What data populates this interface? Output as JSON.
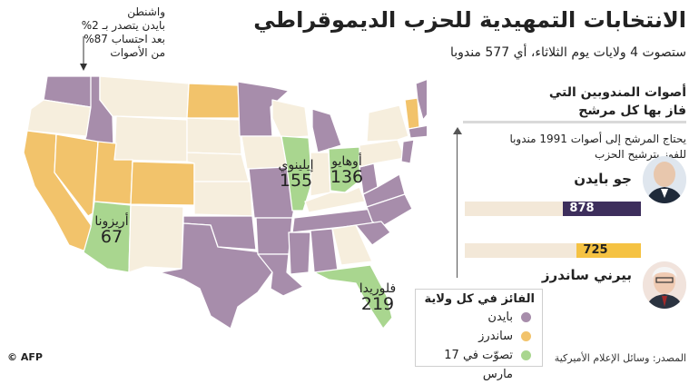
{
  "header": {
    "title": "الانتخابات التمهيدية للحزب الديموقراطي",
    "subtitle": "ستصوت 4 ولايات يوم الثلاثاء، أي 577 مندوبا"
  },
  "panel": {
    "heading_line1": "أصوات المندوبين التي",
    "heading_line2": "فاز بها كل مرشح",
    "threshold_line1": "يحتاج المرشح إلى أصوات 1991 مندوبا",
    "threshold_line2": "للفوز بترشيح الحزب",
    "threshold_value": 1991,
    "bar_max": 1991,
    "candidates": [
      {
        "name": "جو بايدن",
        "delegates": 878,
        "delegates_label": "878",
        "color": "#3d2e5c",
        "text_color": "#ffffff"
      },
      {
        "name": "بيرني ساندرز",
        "delegates": 725,
        "delegates_label": "725",
        "color": "#f5c242",
        "text_color": "#222222"
      }
    ]
  },
  "legend": {
    "title": "الفائز في كل ولاية",
    "items": [
      {
        "label": "بايدن",
        "color": "#a78dab"
      },
      {
        "label": "ساندرز",
        "color": "#f2c36b"
      },
      {
        "label": "تصوّت في 17 مارس",
        "color": "#a9d68f"
      }
    ]
  },
  "map": {
    "states_voting": [
      {
        "name": "أريزونا",
        "delegates": "67"
      },
      {
        "name": "إيلينوي",
        "delegates": "155"
      },
      {
        "name": "أوهايو",
        "delegates": "136"
      },
      {
        "name": "فلوريدا",
        "delegates": "219"
      }
    ],
    "washington_note": "واشنطن بايدن يتصدر بـ 2% بعد احتساب 87% من الأصوات",
    "washington_note_lines": [
      "واشنطن",
      "بايدن يتصدر بـ 2%",
      "بعد احتساب 87%",
      "من الأصوات"
    ],
    "colors": {
      "biden": "#a78dab",
      "sanders": "#f2c36b",
      "voting": "#a9d68f",
      "none": "#f6eedd",
      "outline": "#ffffff"
    }
  },
  "footer": {
    "source": "المصدر: وسائل الإعلام الأميركية",
    "credit": "© AFP"
  }
}
